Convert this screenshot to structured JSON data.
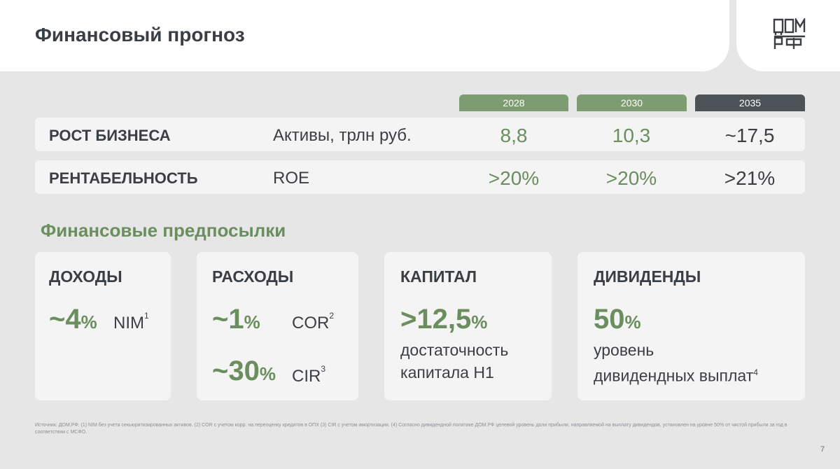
{
  "title": "Финансовый прогноз",
  "logo": {
    "text": "ДОМ.РФ"
  },
  "years": [
    "2028",
    "2030",
    "2035"
  ],
  "rows": [
    {
      "label": "РОСТ БИЗНЕСА",
      "metric": "Активы, трлн руб.",
      "values": [
        "8,8",
        "10,3",
        "~17,5"
      ]
    },
    {
      "label": "РЕНТАБЕЛЬНОСТЬ",
      "metric": "ROE",
      "values": [
        ">20%",
        ">20%",
        ">21%"
      ]
    }
  ],
  "section_title": "Финансовые предпосылки",
  "cards": {
    "income": {
      "title": "ДОХОДЫ",
      "value": "~4",
      "unit": "%",
      "label": "NIM",
      "note": "1"
    },
    "expenses": {
      "title": "РАСХОДЫ",
      "items": [
        {
          "value": "~1",
          "unit": "%",
          "label": "COR",
          "note": "2"
        },
        {
          "value": "~30",
          "unit": "%",
          "label": "CIR",
          "note": "3"
        }
      ]
    },
    "capital": {
      "title": "КАПИТАЛ",
      "value": ">12,5",
      "unit": "%",
      "desc_line1": "достаточность",
      "desc_line2": "капитала Н1"
    },
    "dividends": {
      "title": "ДИВИДЕНДЫ",
      "value": "50",
      "unit": "%",
      "desc_line1": "уровень",
      "desc_line2": "дивидендных выплат",
      "note": "4"
    }
  },
  "footnote": "Источник: ДОМ.РФ. (1) NIM без учета секьюритизированных активов. (2) COR с учетом корр. на переоценку кредитов в ОПХ (3) CIR с учетом амортизации. (4) Согласно дивидендной политике ДОМ.РФ целевой уровень доли прибыли, направляемой на выплату дивидендов, установлен на уровне 50% от чистой прибыли за год в соответствии с МСФО.",
  "page_number": "7",
  "colors": {
    "accent_green": "#6b8e5e",
    "tab_green": "#7d9c72",
    "tab_dark": "#4b5258",
    "card_bg": "#f4f4f4",
    "page_bg": "#e6e6e6"
  }
}
